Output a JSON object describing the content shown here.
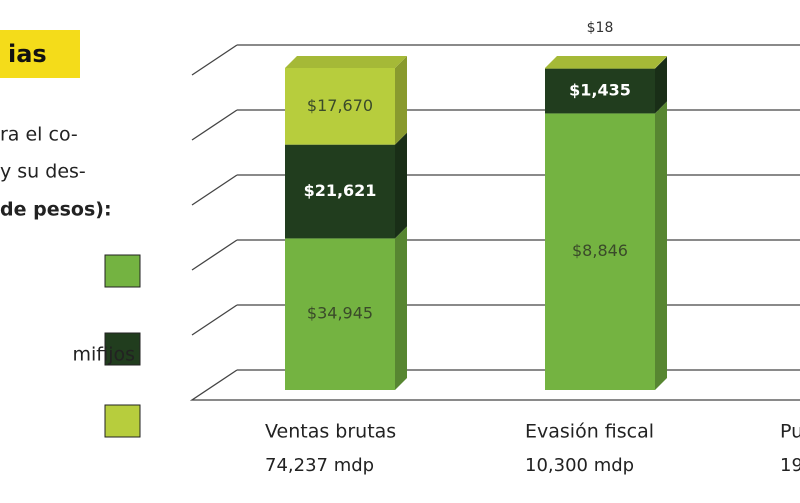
{
  "chart_data": {
    "type": "bar",
    "stacked": "percent",
    "heading": "ias",
    "text_lines": [
      "ra el co-",
      "y su des-",
      " de pesos):"
    ],
    "categories": [
      "Ventas brutas",
      "Evasión fiscal",
      "Pu"
    ],
    "category_totals": [
      "74,237 mdp",
      "10,300 mdp",
      "19"
    ],
    "series": [
      {
        "color": "#74b341",
        "values": [
          34945,
          8846,
          null
        ],
        "value_labels": [
          "$34,945",
          "$8,846",
          null
        ]
      },
      {
        "name": "mifijos",
        "color": "#213d1e",
        "values": [
          21621,
          1435,
          null
        ],
        "value_labels": [
          "$21,621",
          "$1,435",
          null
        ]
      },
      {
        "color": "#b7cd3d",
        "values": [
          17670,
          18,
          null
        ],
        "value_labels": [
          "$17,670",
          "$18",
          null
        ]
      }
    ]
  }
}
